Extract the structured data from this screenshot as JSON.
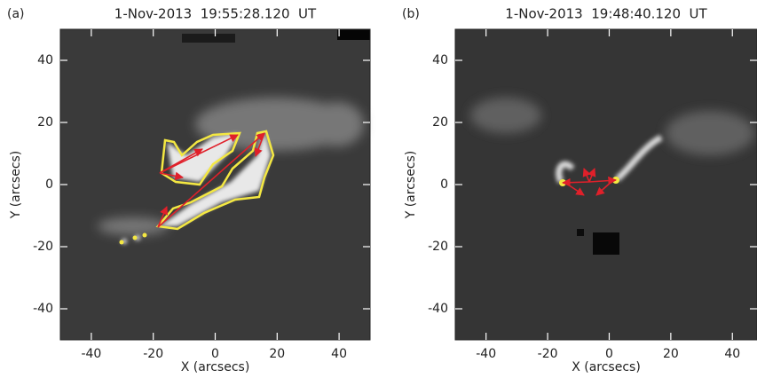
{
  "chart_data": [
    {
      "type": "image",
      "panel_label": "(a)",
      "title": "1-Nov-2013  19:55:28.120  UT",
      "xlabel": "X (arcsecs)",
      "ylabel": "Y (arcsecs)",
      "xlim": [
        -50,
        50
      ],
      "ylim": [
        -50,
        50
      ],
      "xticks": [
        -40,
        -20,
        0,
        20,
        40
      ],
      "yticks": [
        -40,
        -20,
        0,
        20,
        40
      ]
    },
    {
      "type": "image",
      "panel_label": "(b)",
      "title": "1-Nov-2013  19:48:40.120  UT",
      "xlabel": "X (arcsecs)",
      "ylabel": "Y (arcsecs)",
      "xlim": [
        -50,
        48
      ],
      "ylim": [
        -50,
        50
      ],
      "xticks": [
        -40,
        -20,
        0,
        20,
        40
      ],
      "yticks": [
        -40,
        -20,
        0,
        20,
        40
      ]
    }
  ]
}
